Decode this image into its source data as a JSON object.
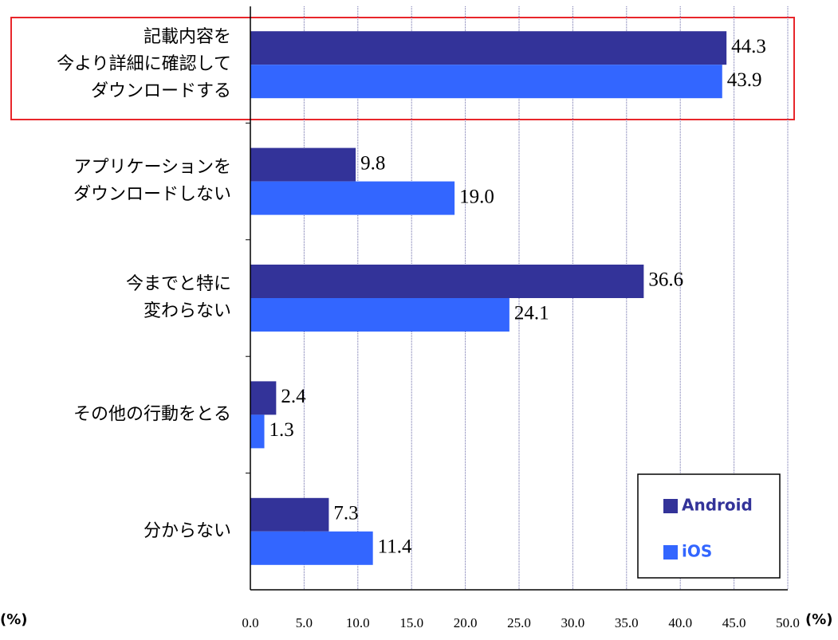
{
  "chart_data": {
    "type": "bar",
    "orientation": "horizontal",
    "categories": [
      [
        "記載内容を",
        "今より詳細に確認して",
        "ダウンロードする"
      ],
      [
        "アプリケーションを",
        "ダウンロードしない"
      ],
      [
        "今までと特に",
        "変わらない"
      ],
      [
        "その他の行動をとる"
      ],
      [
        "分からない"
      ]
    ],
    "series": [
      {
        "name": "Android",
        "color": "#333399",
        "values": [
          44.3,
          9.8,
          36.6,
          2.4,
          7.3
        ],
        "value_labels": [
          "44.3",
          "9.8",
          "36.6",
          "2.4",
          "7.3"
        ]
      },
      {
        "name": "iOS",
        "color": "#3366ff",
        "values": [
          43.9,
          19.0,
          24.1,
          1.3,
          11.4
        ],
        "value_labels": [
          "43.9",
          "19.0",
          "24.1",
          "1.3",
          "11.4"
        ]
      }
    ],
    "xlim": [
      0,
      50
    ],
    "xticks": [
      {
        "value": 0,
        "label": "0.0"
      },
      {
        "value": 5,
        "label": "5.0"
      },
      {
        "value": 10,
        "label": "10.0"
      },
      {
        "value": 15,
        "label": "15.0"
      },
      {
        "value": 20,
        "label": "20.0"
      },
      {
        "value": 25,
        "label": "25.0"
      },
      {
        "value": 30,
        "label": "30.0"
      },
      {
        "value": 35,
        "label": "35.0"
      },
      {
        "value": 40,
        "label": "40.0"
      },
      {
        "value": 45,
        "label": "45.0"
      },
      {
        "value": 50,
        "label": "50.0"
      }
    ],
    "x_unit": "(%)",
    "grid": true,
    "legend": "lower right"
  }
}
